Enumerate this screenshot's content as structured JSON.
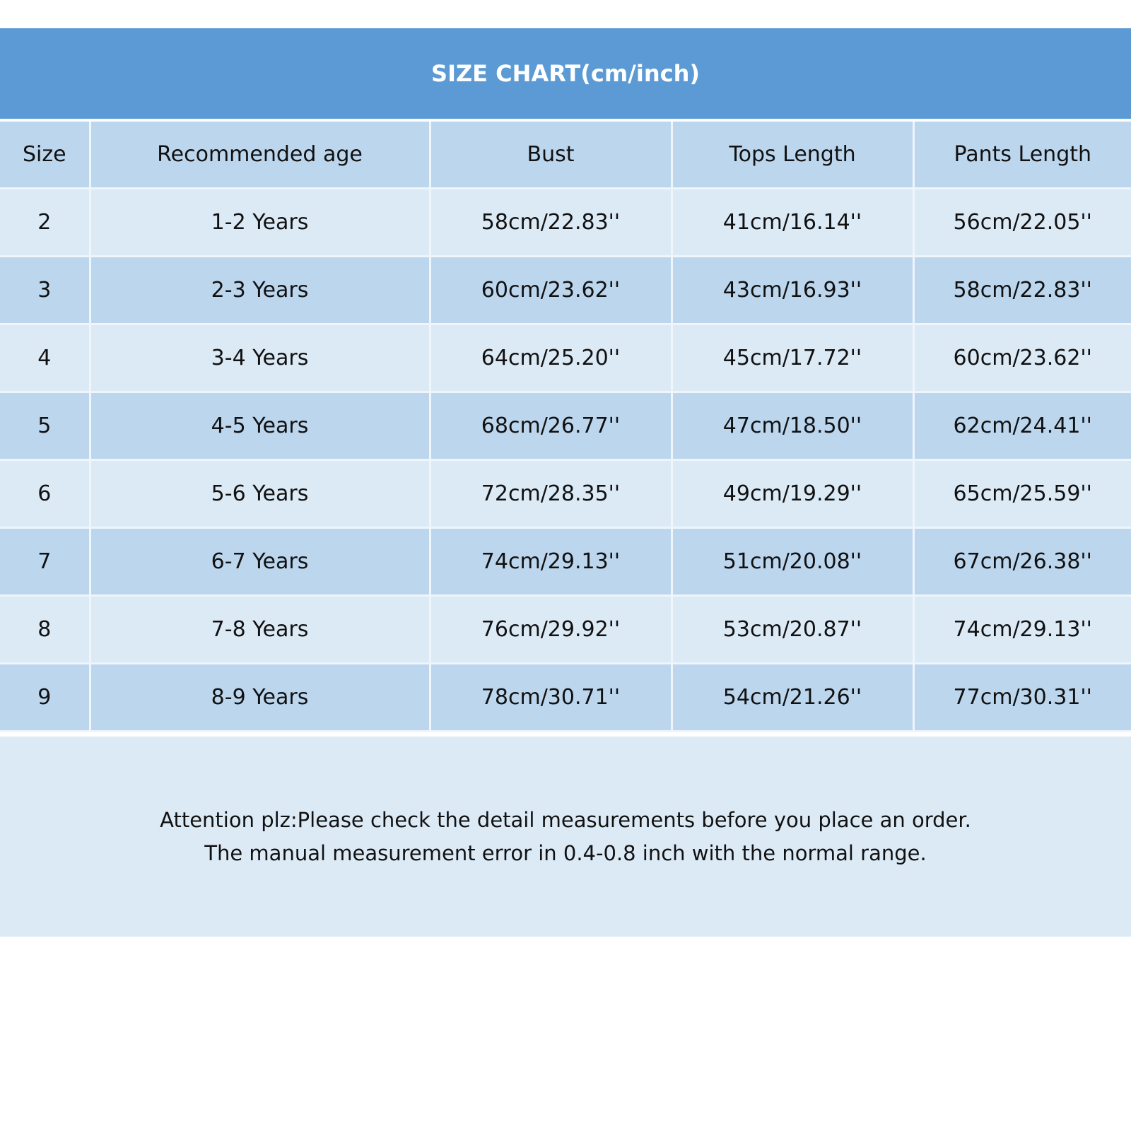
{
  "title": "SIZE CHART(cm/inch)",
  "colors": {
    "title_bar": "#5b9ad4",
    "header_row": "#bcd6ee",
    "row_light": "#dceaf6",
    "row_dark": "#bcd6ee"
  },
  "columns": [
    "Size",
    "Recommended age",
    "Bust",
    "Tops Length",
    "Pants Length"
  ],
  "rows": [
    [
      "2",
      "1-2 Years",
      "58cm/22.83''",
      "41cm/16.14''",
      "56cm/22.05''"
    ],
    [
      "3",
      "2-3 Years",
      "60cm/23.62''",
      "43cm/16.93''",
      "58cm/22.83''"
    ],
    [
      "4",
      "3-4 Years",
      "64cm/25.20''",
      "45cm/17.72''",
      "60cm/23.62''"
    ],
    [
      "5",
      "4-5 Years",
      "68cm/26.77''",
      "47cm/18.50''",
      "62cm/24.41''"
    ],
    [
      "6",
      "5-6 Years",
      "72cm/28.35''",
      "49cm/19.29''",
      "65cm/25.59''"
    ],
    [
      "7",
      "6-7 Years",
      "74cm/29.13''",
      "51cm/20.08''",
      "67cm/26.38''"
    ],
    [
      "8",
      "7-8 Years",
      "76cm/29.92''",
      "53cm/20.87''",
      "74cm/29.13''"
    ],
    [
      "9",
      "8-9 Years",
      "78cm/30.71''",
      "54cm/21.26''",
      "77cm/30.31''"
    ]
  ],
  "note": [
    "Attention plz:Please check the detail measurements before you place an order.",
    "The manual measurement error in 0.4-0.8 inch with the normal range."
  ]
}
